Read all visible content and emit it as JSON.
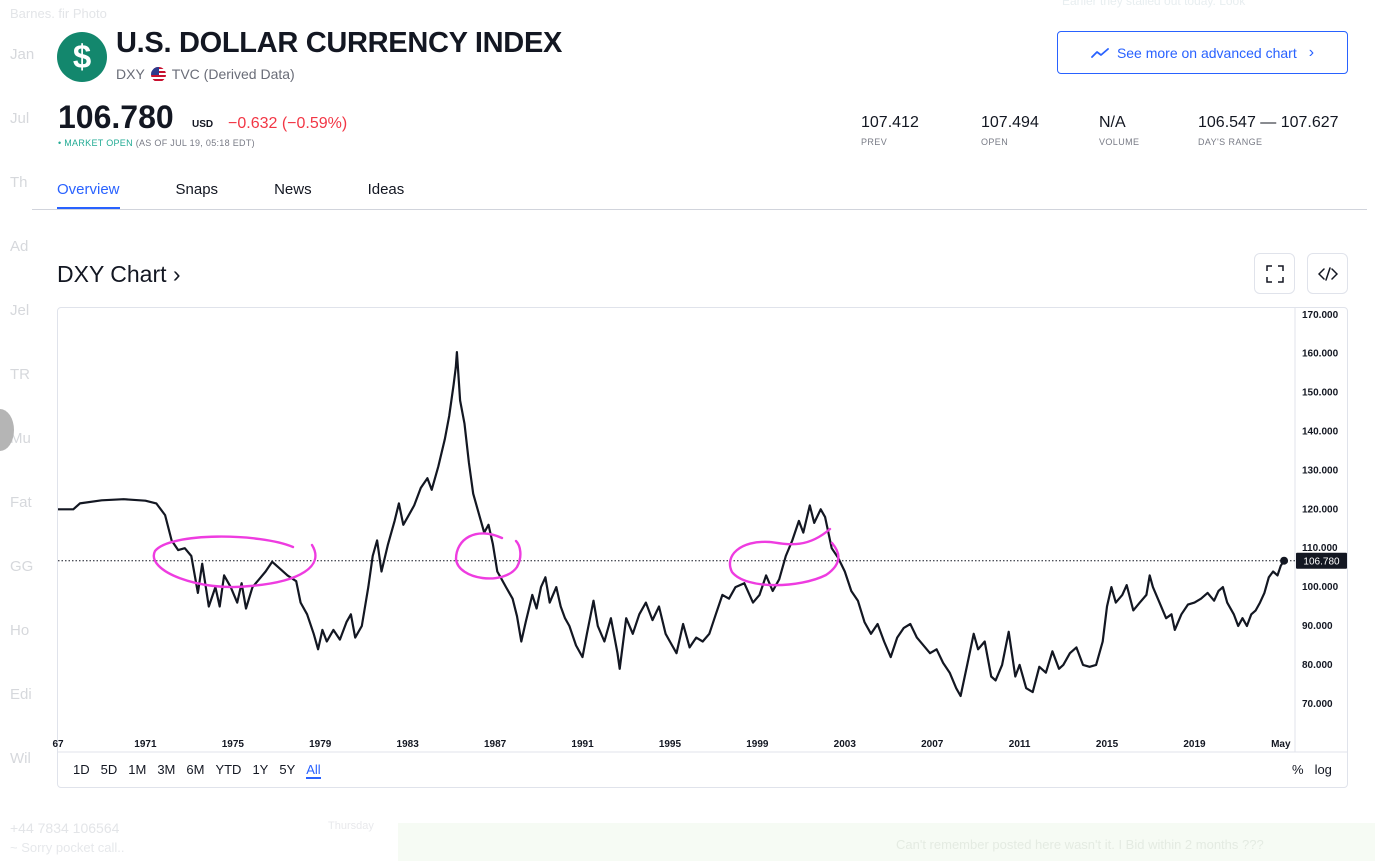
{
  "background": {
    "top_left": "Barnes.  fir Photo",
    "top_right": "Earlier they stalled out today. Look",
    "left_items": [
      "Jan",
      "Jul",
      "Th",
      "Ad",
      "Jel",
      "TR",
      "Mu",
      "Fat",
      "GG",
      "Ho",
      "Edi",
      "Wil"
    ],
    "bottom_left_title": "+44 7834 106564",
    "bottom_left_sub": "~ Sorry pocket call..",
    "bottom_mid": "Thursday",
    "bottom_bubble": "Can't remember posted here wasn't it. I Bid within 2 months ???"
  },
  "header": {
    "logo_symbol": "$",
    "title": "U.S. DOLLAR CURRENCY INDEX",
    "ticker": "DXY",
    "source": "TVC (Derived Data)",
    "advanced_button": "See more on advanced chart"
  },
  "quote": {
    "price": "106.780",
    "currency": "USD",
    "change": "−0.632  (−0.59%)",
    "market_status": "• MARKET OPEN",
    "as_of": " (AS OF JUL 19, 05:18 EDT)"
  },
  "stats": [
    {
      "value": "107.412",
      "label": "PREV"
    },
    {
      "value": "107.494",
      "label": "OPEN"
    },
    {
      "value": "N/A",
      "label": "VOLUME"
    },
    {
      "value": "106.547 — 107.627",
      "label": "DAY'S RANGE"
    }
  ],
  "tabs": [
    "Overview",
    "Snaps",
    "News",
    "Ideas"
  ],
  "active_tab": "Overview",
  "chart_title": "DXY Chart ›",
  "ranges": [
    "1D",
    "5D",
    "1M",
    "3M",
    "6M",
    "YTD",
    "1Y",
    "5Y",
    "All"
  ],
  "active_range": "All",
  "scale_options": [
    "%",
    "log"
  ],
  "colors": {
    "logo": "#13876d",
    "accent": "#2962ff",
    "negative": "#f23645",
    "market_open": "#22ab94",
    "line": "#131722",
    "annotation": "#ee3ce0"
  },
  "chart_data": {
    "type": "line",
    "ylim": [
      63,
      172
    ],
    "xlim": [
      1967,
      2023.6
    ],
    "y_ticks": [
      "170.000",
      "160.000",
      "150.000",
      "140.000",
      "130.000",
      "120.000",
      "110.000",
      "100.000",
      "90.000",
      "80.000",
      "70.000"
    ],
    "y_tick_values": [
      170,
      160,
      150,
      140,
      130,
      120,
      110,
      100,
      90,
      80,
      70
    ],
    "x_ticks": [
      "67",
      "1971",
      "1975",
      "1979",
      "1983",
      "1987",
      "1991",
      "1995",
      "1999",
      "2003",
      "2007",
      "2011",
      "2015",
      "2019",
      "May"
    ],
    "x_tick_values": [
      1967,
      1971,
      1975,
      1979,
      1983,
      1987,
      1991,
      1995,
      1999,
      2003,
      2007,
      2011,
      2015,
      2019,
      2022.95
    ],
    "last_value": 106.78,
    "last_value_label": "106.780",
    "reference_line": 106.78,
    "series": [
      {
        "points": [
          [
            1967.0,
            120.0
          ],
          [
            1967.7,
            120.0
          ],
          [
            1968.0,
            121.5
          ],
          [
            1969.0,
            122.3
          ],
          [
            1970.0,
            122.6
          ],
          [
            1971.0,
            122.2
          ],
          [
            1971.5,
            121.5
          ],
          [
            1971.9,
            118.5
          ],
          [
            1972.2,
            112.0
          ],
          [
            1972.5,
            109.5
          ],
          [
            1972.8,
            110.0
          ],
          [
            1973.1,
            108.0
          ],
          [
            1973.4,
            98.5
          ],
          [
            1973.6,
            106.0
          ],
          [
            1973.9,
            95.0
          ],
          [
            1974.2,
            100.0
          ],
          [
            1974.4,
            95.0
          ],
          [
            1974.6,
            103.0
          ],
          [
            1974.9,
            100.0
          ],
          [
            1975.2,
            96.0
          ],
          [
            1975.4,
            101.0
          ],
          [
            1975.6,
            94.5
          ],
          [
            1975.9,
            100.0
          ],
          [
            1976.2,
            102.0
          ],
          [
            1976.5,
            104.0
          ],
          [
            1976.8,
            106.5
          ],
          [
            1977.1,
            105.0
          ],
          [
            1977.5,
            103.0
          ],
          [
            1977.9,
            101.5
          ],
          [
            1978.1,
            96.0
          ],
          [
            1978.4,
            93.0
          ],
          [
            1978.7,
            88.0
          ],
          [
            1978.9,
            84.0
          ],
          [
            1979.1,
            89.0
          ],
          [
            1979.3,
            86.0
          ],
          [
            1979.6,
            89.0
          ],
          [
            1979.9,
            86.5
          ],
          [
            1980.2,
            91.0
          ],
          [
            1980.4,
            93.0
          ],
          [
            1980.6,
            87.0
          ],
          [
            1980.9,
            90.0
          ],
          [
            1981.2,
            100.0
          ],
          [
            1981.4,
            108.0
          ],
          [
            1981.6,
            112.0
          ],
          [
            1981.8,
            104.0
          ],
          [
            1982.1,
            111.0
          ],
          [
            1982.4,
            117.0
          ],
          [
            1982.6,
            121.5
          ],
          [
            1982.8,
            116.0
          ],
          [
            1983.0,
            118.0
          ],
          [
            1983.3,
            121.0
          ],
          [
            1983.6,
            125.5
          ],
          [
            1983.9,
            128.0
          ],
          [
            1984.1,
            125.0
          ],
          [
            1984.4,
            131.0
          ],
          [
            1984.7,
            138.0
          ],
          [
            1984.9,
            144.0
          ],
          [
            1985.1,
            152.0
          ],
          [
            1985.2,
            156.5
          ],
          [
            1985.25,
            160.4
          ],
          [
            1985.4,
            148.0
          ],
          [
            1985.6,
            142.0
          ],
          [
            1985.8,
            132.0
          ],
          [
            1986.0,
            124.0
          ],
          [
            1986.3,
            118.0
          ],
          [
            1986.5,
            114.0
          ],
          [
            1986.7,
            116.0
          ],
          [
            1986.9,
            111.0
          ],
          [
            1987.1,
            104.0
          ],
          [
            1987.3,
            102.0
          ],
          [
            1987.5,
            100.0
          ],
          [
            1987.8,
            97.0
          ],
          [
            1988.0,
            92.5
          ],
          [
            1988.2,
            86.0
          ],
          [
            1988.4,
            91.0
          ],
          [
            1988.7,
            98.0
          ],
          [
            1988.9,
            94.5
          ],
          [
            1989.1,
            100.0
          ],
          [
            1989.3,
            102.5
          ],
          [
            1989.5,
            96.0
          ],
          [
            1989.8,
            100.0
          ],
          [
            1990.0,
            95.0
          ],
          [
            1990.2,
            92.0
          ],
          [
            1990.4,
            90.0
          ],
          [
            1990.7,
            85.0
          ],
          [
            1991.0,
            82.0
          ],
          [
            1991.2,
            88.0
          ],
          [
            1991.5,
            96.5
          ],
          [
            1991.7,
            90.0
          ],
          [
            1992.0,
            86.0
          ],
          [
            1992.3,
            92.0
          ],
          [
            1992.6,
            83.0
          ],
          [
            1992.7,
            79.0
          ],
          [
            1993.0,
            92.0
          ],
          [
            1993.3,
            88.0
          ],
          [
            1993.6,
            93.0
          ],
          [
            1993.9,
            96.0
          ],
          [
            1994.2,
            91.5
          ],
          [
            1994.5,
            95.0
          ],
          [
            1994.8,
            88.0
          ],
          [
            1995.0,
            86.0
          ],
          [
            1995.3,
            83.0
          ],
          [
            1995.6,
            90.5
          ],
          [
            1995.9,
            84.5
          ],
          [
            1996.2,
            87.0
          ],
          [
            1996.5,
            86.0
          ],
          [
            1996.8,
            88.0
          ],
          [
            1997.1,
            93.0
          ],
          [
            1997.4,
            98.0
          ],
          [
            1997.7,
            97.0
          ],
          [
            1998.0,
            100.0
          ],
          [
            1998.4,
            101.0
          ],
          [
            1998.8,
            96.0
          ],
          [
            1999.1,
            98.0
          ],
          [
            1999.4,
            103.0
          ],
          [
            1999.7,
            99.0
          ],
          [
            2000.0,
            102.0
          ],
          [
            2000.3,
            108.0
          ],
          [
            2000.6,
            112.0
          ],
          [
            2000.9,
            117.0
          ],
          [
            2001.1,
            114.0
          ],
          [
            2001.4,
            121.0
          ],
          [
            2001.6,
            116.5
          ],
          [
            2001.9,
            120.0
          ],
          [
            2002.1,
            118.0
          ],
          [
            2002.4,
            110.0
          ],
          [
            2002.7,
            107.5
          ],
          [
            2003.0,
            104.0
          ],
          [
            2003.3,
            99.0
          ],
          [
            2003.6,
            96.5
          ],
          [
            2003.9,
            91.0
          ],
          [
            2004.2,
            88.0
          ],
          [
            2004.5,
            90.5
          ],
          [
            2004.8,
            86.0
          ],
          [
            2005.1,
            82.0
          ],
          [
            2005.4,
            87.0
          ],
          [
            2005.7,
            89.5
          ],
          [
            2006.0,
            90.5
          ],
          [
            2006.3,
            87.0
          ],
          [
            2006.6,
            85.0
          ],
          [
            2006.9,
            83.0
          ],
          [
            2007.2,
            84.0
          ],
          [
            2007.5,
            80.5
          ],
          [
            2007.8,
            78.0
          ],
          [
            2008.1,
            74.0
          ],
          [
            2008.3,
            72.0
          ],
          [
            2008.6,
            80.0
          ],
          [
            2008.9,
            88.0
          ],
          [
            2009.1,
            84.0
          ],
          [
            2009.4,
            86.0
          ],
          [
            2009.7,
            77.0
          ],
          [
            2009.9,
            76.0
          ],
          [
            2010.2,
            80.0
          ],
          [
            2010.5,
            88.5
          ],
          [
            2010.8,
            77.0
          ],
          [
            2011.0,
            80.0
          ],
          [
            2011.3,
            74.0
          ],
          [
            2011.6,
            73.0
          ],
          [
            2011.9,
            79.5
          ],
          [
            2012.2,
            78.0
          ],
          [
            2012.5,
            83.5
          ],
          [
            2012.8,
            79.0
          ],
          [
            2013.0,
            80.0
          ],
          [
            2013.3,
            83.0
          ],
          [
            2013.6,
            84.5
          ],
          [
            2013.9,
            80.0
          ],
          [
            2014.2,
            79.5
          ],
          [
            2014.5,
            80.0
          ],
          [
            2014.8,
            86.0
          ],
          [
            2015.0,
            95.0
          ],
          [
            2015.2,
            100.0
          ],
          [
            2015.4,
            96.0
          ],
          [
            2015.7,
            98.0
          ],
          [
            2015.9,
            100.5
          ],
          [
            2016.2,
            94.0
          ],
          [
            2016.5,
            96.0
          ],
          [
            2016.8,
            98.0
          ],
          [
            2016.95,
            103.0
          ],
          [
            2017.1,
            100.0
          ],
          [
            2017.4,
            96.0
          ],
          [
            2017.7,
            92.0
          ],
          [
            2017.95,
            93.0
          ],
          [
            2018.1,
            89.0
          ],
          [
            2018.4,
            93.0
          ],
          [
            2018.7,
            95.5
          ],
          [
            2019.0,
            96.0
          ],
          [
            2019.3,
            97.0
          ],
          [
            2019.6,
            98.5
          ],
          [
            2019.9,
            96.5
          ],
          [
            2020.1,
            99.0
          ],
          [
            2020.3,
            100.0
          ],
          [
            2020.5,
            96.0
          ],
          [
            2020.8,
            93.0
          ],
          [
            2021.0,
            90.0
          ],
          [
            2021.2,
            92.0
          ],
          [
            2021.4,
            90.0
          ],
          [
            2021.6,
            93.0
          ],
          [
            2021.8,
            94.0
          ],
          [
            2022.0,
            96.0
          ],
          [
            2022.2,
            98.5
          ],
          [
            2022.4,
            102.5
          ],
          [
            2022.6,
            104.0
          ],
          [
            2022.8,
            103.0
          ],
          [
            2022.95,
            105.5
          ],
          [
            2023.1,
            106.78
          ]
        ]
      }
    ]
  }
}
